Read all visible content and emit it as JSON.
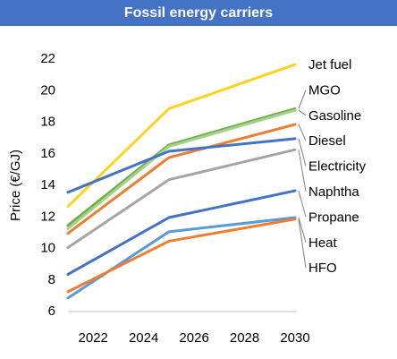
{
  "chart_data": {
    "type": "line",
    "title": "Fossil energy carriers",
    "ylabel": "Price (€/GJ)",
    "xlabel": "",
    "x": [
      2021,
      2025,
      2030
    ],
    "xlim": [
      2021,
      2030
    ],
    "xticks": [
      2022,
      2024,
      2026,
      2028,
      2030
    ],
    "ylim": [
      6,
      22
    ],
    "yticks": [
      6,
      8,
      10,
      12,
      14,
      16,
      18,
      20,
      22
    ],
    "grid": false,
    "legend": "right, labels at line ends",
    "series": [
      {
        "name": "Jet fuel",
        "color": "#ffd21f",
        "values": [
          12.6,
          18.8,
          21.6
        ]
      },
      {
        "name": "MGO",
        "color": "#70ad47",
        "values": [
          11.4,
          16.5,
          18.8
        ]
      },
      {
        "name": "Gasoline",
        "color": "#a9d18e",
        "values": [
          11.2,
          16.4,
          18.7
        ]
      },
      {
        "name": "Diesel",
        "color": "#ed7d31",
        "values": [
          10.9,
          15.7,
          17.8
        ]
      },
      {
        "name": "Electricity",
        "color": "#4472c4",
        "values": [
          13.5,
          16.1,
          16.9
        ]
      },
      {
        "name": "Naphtha",
        "color": "#a5a5a5",
        "values": [
          10.0,
          14.3,
          16.2
        ]
      },
      {
        "name": "Propane",
        "color": "#4472c4",
        "values": [
          8.3,
          11.9,
          13.6
        ]
      },
      {
        "name": "Heat",
        "color": "#5b9bd5",
        "values": [
          6.8,
          11.0,
          11.9
        ]
      },
      {
        "name": "HFO",
        "color": "#ed7d31",
        "values": [
          7.2,
          10.4,
          11.8
        ]
      }
    ]
  }
}
